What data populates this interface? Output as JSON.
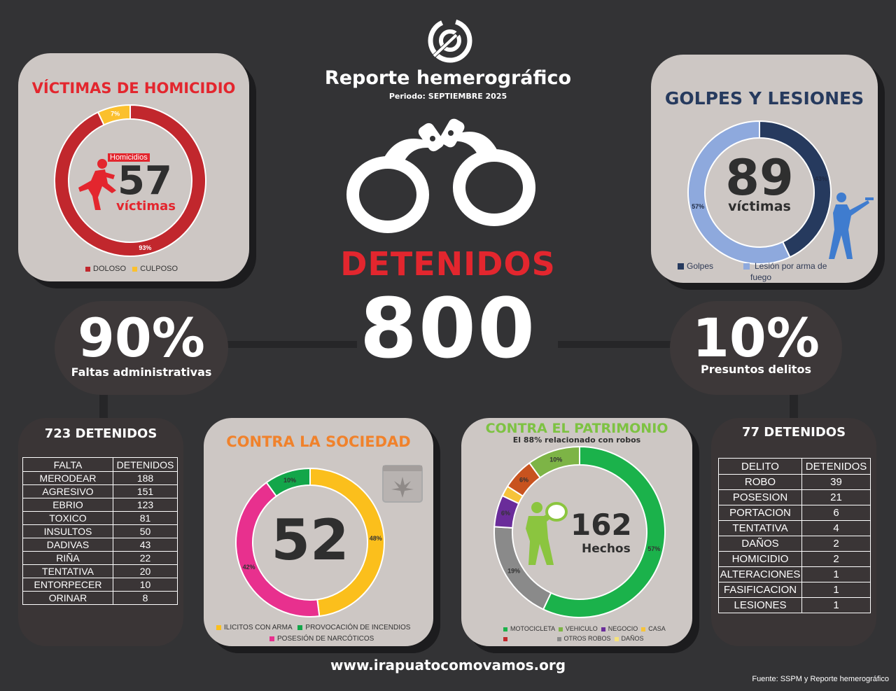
{
  "header": {
    "title": "Reporte hemerográfico",
    "period": "Periodo: SEPTIEMBRE 2025"
  },
  "center": {
    "label": "DETENIDOS",
    "total": "800"
  },
  "left_pill": {
    "percent": "90%",
    "label": "Faltas administrativas"
  },
  "right_pill": {
    "percent": "10%",
    "label": "Presuntos delitos"
  },
  "homicidio": {
    "title": "VÍCTIMAS DE HOMICIDIO",
    "badge": "Homicidios",
    "count": "57",
    "unit": "víctimas",
    "legend": [
      "DOLOSO",
      "CULPOSO"
    ]
  },
  "golpes": {
    "title": "GOLPES Y LESIONES",
    "count": "89",
    "unit": "víctimas",
    "legend": [
      "Golpes",
      "Lesión por arma de fuego"
    ]
  },
  "sociedad": {
    "title": "CONTRA LA SOCIEDAD",
    "count": "52",
    "legend": [
      "ILICITOS CON ARMA",
      "PROVOCACIÓN DE INCENDIOS",
      "POSESIÓN DE NARCÓTICOS"
    ]
  },
  "patrimonio": {
    "title": "CONTRA EL PATRIMONIO",
    "subtitle": "El 88% relacionado con robos",
    "count": "162",
    "unit": "Hechos",
    "legend": [
      "MOTOCICLETA",
      "VEHICULO",
      "NEGOCIO",
      "CASA",
      "OTROS ROBOS",
      "DAÑOS"
    ]
  },
  "faltas_table": {
    "title": "723 DETENIDOS",
    "headers": [
      "FALTA",
      "DETENIDOS"
    ],
    "rows": [
      [
        "MERODEAR",
        "188"
      ],
      [
        "AGRESIVO",
        "151"
      ],
      [
        "EBRIO",
        "123"
      ],
      [
        "TOXICO",
        "81"
      ],
      [
        "INSULTOS",
        "50"
      ],
      [
        "DADIVAS",
        "43"
      ],
      [
        "RIÑA",
        "22"
      ],
      [
        "TENTATIVA",
        "20"
      ],
      [
        "ENTORPECER",
        "10"
      ],
      [
        "ORINAR",
        "8"
      ]
    ]
  },
  "delitos_table": {
    "title": "77 DETENIDOS",
    "headers": [
      "DELITO",
      "DETENIDOS"
    ],
    "rows": [
      [
        "ROBO",
        "39"
      ],
      [
        "POSESION",
        "21"
      ],
      [
        "PORTACION",
        "6"
      ],
      [
        "TENTATIVA",
        "4"
      ],
      [
        "DAÑOS",
        "2"
      ],
      [
        "HOMICIDIO",
        "2"
      ],
      [
        "ALTERACIONES",
        "1"
      ],
      [
        "FASIFICACION",
        "1"
      ],
      [
        "LESIONES",
        "1"
      ]
    ]
  },
  "footer": {
    "url": "www.irapuatocomovamos.org",
    "source": "Fuente: SSPM y Reporte hemerográfico"
  },
  "chart_data": [
    {
      "type": "pie",
      "name": "homicidio",
      "categories": [
        "DOLOSO",
        "CULPOSO"
      ],
      "values": [
        93,
        7
      ],
      "labels": [
        "93%",
        "7%"
      ],
      "colors": [
        "#c1272d",
        "#fbc02d"
      ],
      "legend": "bottom"
    },
    {
      "type": "pie",
      "name": "golpes",
      "categories": [
        "Golpes",
        "Lesión por arma de fuego"
      ],
      "values": [
        43,
        57
      ],
      "labels": [
        "43%",
        "57%"
      ],
      "colors": [
        "#263a5e",
        "#8ea9dd"
      ],
      "legend": "bottom"
    },
    {
      "type": "pie",
      "name": "sociedad",
      "categories": [
        "ILICITOS CON ARMA",
        "POSESIÓN DE NARCÓTICOS",
        "PROVOCACIÓN DE INCENDIOS"
      ],
      "values": [
        48,
        42,
        10
      ],
      "labels": [
        "48%",
        "42%",
        "10%"
      ],
      "colors": [
        "#fbbf1c",
        "#e8308e",
        "#13a64a"
      ],
      "legend": "bottom"
    },
    {
      "type": "pie",
      "name": "patrimonio",
      "categories": [
        "MOTOCICLETA",
        "OTROS ROBOS",
        "NEGOCIO",
        "CASA",
        "DAÑOS",
        "VEHICULO"
      ],
      "values": [
        57,
        19,
        6,
        2,
        6,
        10
      ],
      "labels": [
        "57%",
        "19%",
        "6%",
        "",
        "6%",
        "10%"
      ],
      "colors": [
        "#1bb24b",
        "#8a8a8a",
        "#6a2c9a",
        "#f6c33a",
        "#c8531f",
        "#7db446"
      ],
      "legend": "bottom"
    }
  ]
}
